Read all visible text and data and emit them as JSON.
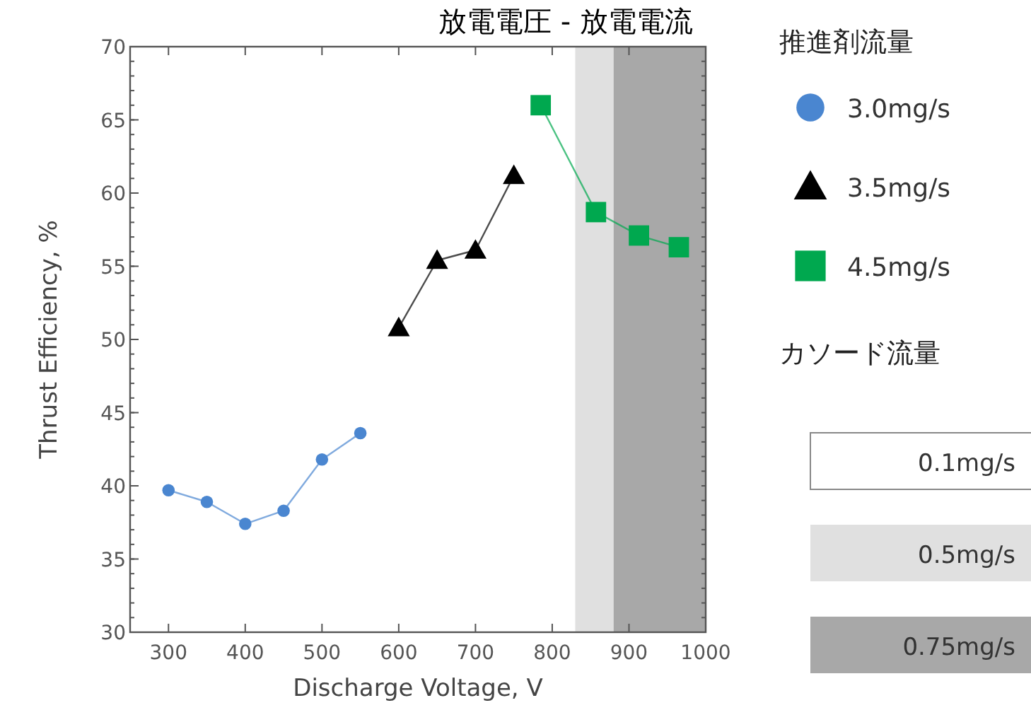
{
  "chart_data": {
    "type": "line",
    "title": "放電電圧 - 放電電流",
    "xlabel": "Discharge Voltage,  V",
    "ylabel": "Thrust Efficiency,  %",
    "legend_title": "推進剤流量",
    "annotations": [
      "カソード流量",
      "0.1mg/s",
      "0.5mg/s",
      "0.75mg/s"
    ],
    "xlim": [
      250,
      1000
    ],
    "xticks": [
      300,
      400,
      500,
      600,
      700,
      800,
      900,
      1000
    ],
    "ylim": [
      30,
      70
    ],
    "yticks": [
      30,
      35,
      40,
      45,
      50,
      55,
      60,
      65,
      70
    ],
    "series": [
      {
        "name": "3.0mg/s",
        "color": "#4a86d0",
        "marker": "circle",
        "x": [
          300,
          350,
          400,
          450,
          500,
          550
        ],
        "values": [
          39.7,
          38.9,
          37.4,
          38.3,
          41.8,
          43.6
        ]
      },
      {
        "name": "3.5mg/s",
        "color": "#000000",
        "marker": "triangle",
        "x": [
          600,
          650,
          700,
          750
        ],
        "values": [
          50.8,
          55.4,
          56.1,
          61.2
        ]
      },
      {
        "name": "4.5mg/s",
        "color": "#00a84f",
        "marker": "square",
        "x": [
          785,
          857,
          913,
          965
        ],
        "values": [
          66.0,
          58.7,
          57.1,
          56.3
        ]
      }
    ],
    "bands": [
      {
        "axis": "x",
        "from": 830,
        "to": 880,
        "color": "#e0e0e0"
      },
      {
        "axis": "x",
        "from": 880,
        "to": 1000,
        "color": "#a8a8a8"
      }
    ],
    "legend": "right",
    "grid": false
  }
}
